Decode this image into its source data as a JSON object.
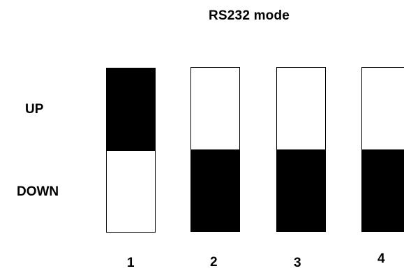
{
  "title": "RS232 mode",
  "rows": {
    "up": "UP",
    "down": "DOWN"
  },
  "switches": [
    {
      "number": "1",
      "position": "UP"
    },
    {
      "number": "2",
      "position": "DOWN"
    },
    {
      "number": "3",
      "position": "DOWN"
    },
    {
      "number": "4",
      "position": "DOWN"
    }
  ],
  "colors": {
    "active": "#000000",
    "inactive": "#ffffff"
  }
}
